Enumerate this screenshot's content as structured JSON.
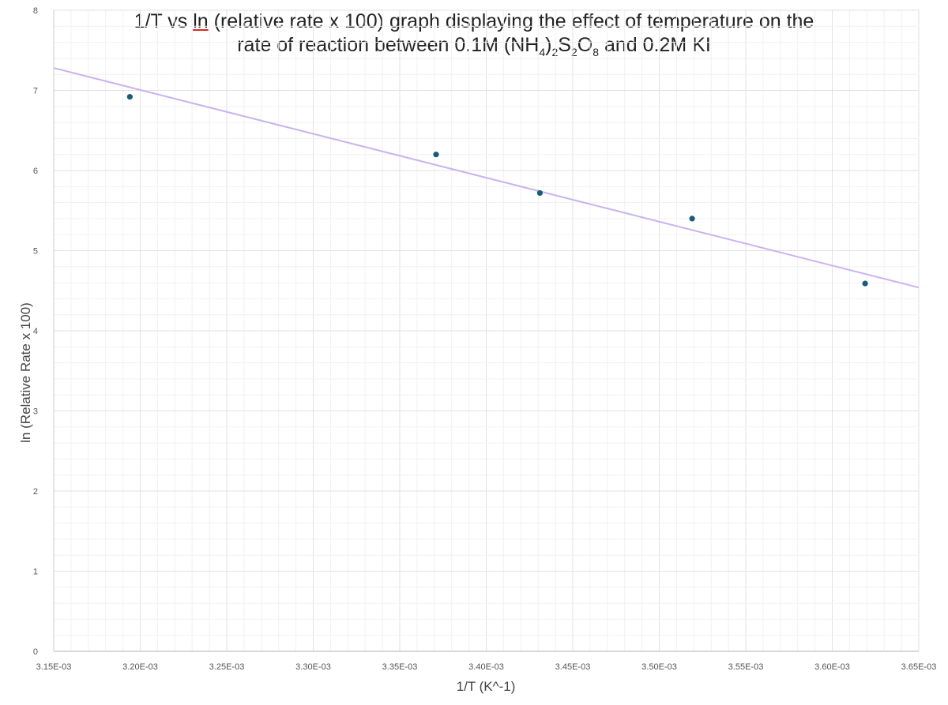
{
  "chart_data": {
    "type": "scatter",
    "title_line1_parts": [
      "1/T vs ",
      "ln",
      " (relative rate x 100) graph displaying the effect of temperature on the"
    ],
    "title_line2_parts": [
      {
        "t": "rate of reaction between 0.1M (NH"
      },
      {
        "s": "4"
      },
      {
        "t": ")"
      },
      {
        "s": "2"
      },
      {
        "t": "S"
      },
      {
        "s": "2"
      },
      {
        "t": "O"
      },
      {
        "s": "8"
      },
      {
        "t": " and 0.2M KI"
      }
    ],
    "xlabel": "1/T (K^-1)",
    "ylabel": "ln (Relative Rate x 100)",
    "xlim": [
      0.00315,
      0.00365
    ],
    "ylim": [
      0,
      8
    ],
    "x_ticks": [
      "3.15E-03",
      "3.20E-03",
      "3.25E-03",
      "3.30E-03",
      "3.35E-03",
      "3.40E-03",
      "3.45E-03",
      "3.50E-03",
      "3.55E-03",
      "3.60E-03",
      "3.65E-03"
    ],
    "y_ticks": [
      "0",
      "1",
      "2",
      "3",
      "4",
      "5",
      "6",
      "7",
      "8"
    ],
    "grid": true,
    "points": [
      {
        "x": 0.003194,
        "y": 6.92
      },
      {
        "x": 0.003371,
        "y": 6.2
      },
      {
        "x": 0.003431,
        "y": 5.72
      },
      {
        "x": 0.003519,
        "y": 5.4
      },
      {
        "x": 0.003619,
        "y": 4.59
      }
    ],
    "trendline": {
      "type": "linear",
      "x": [
        0.00315,
        0.00365
      ],
      "y": [
        7.28,
        4.54
      ]
    },
    "colors": {
      "points": "#1a5a7a",
      "trendline": "#c9b3ee",
      "grid": "#e6e6e6",
      "axis": "#cccccc"
    }
  }
}
